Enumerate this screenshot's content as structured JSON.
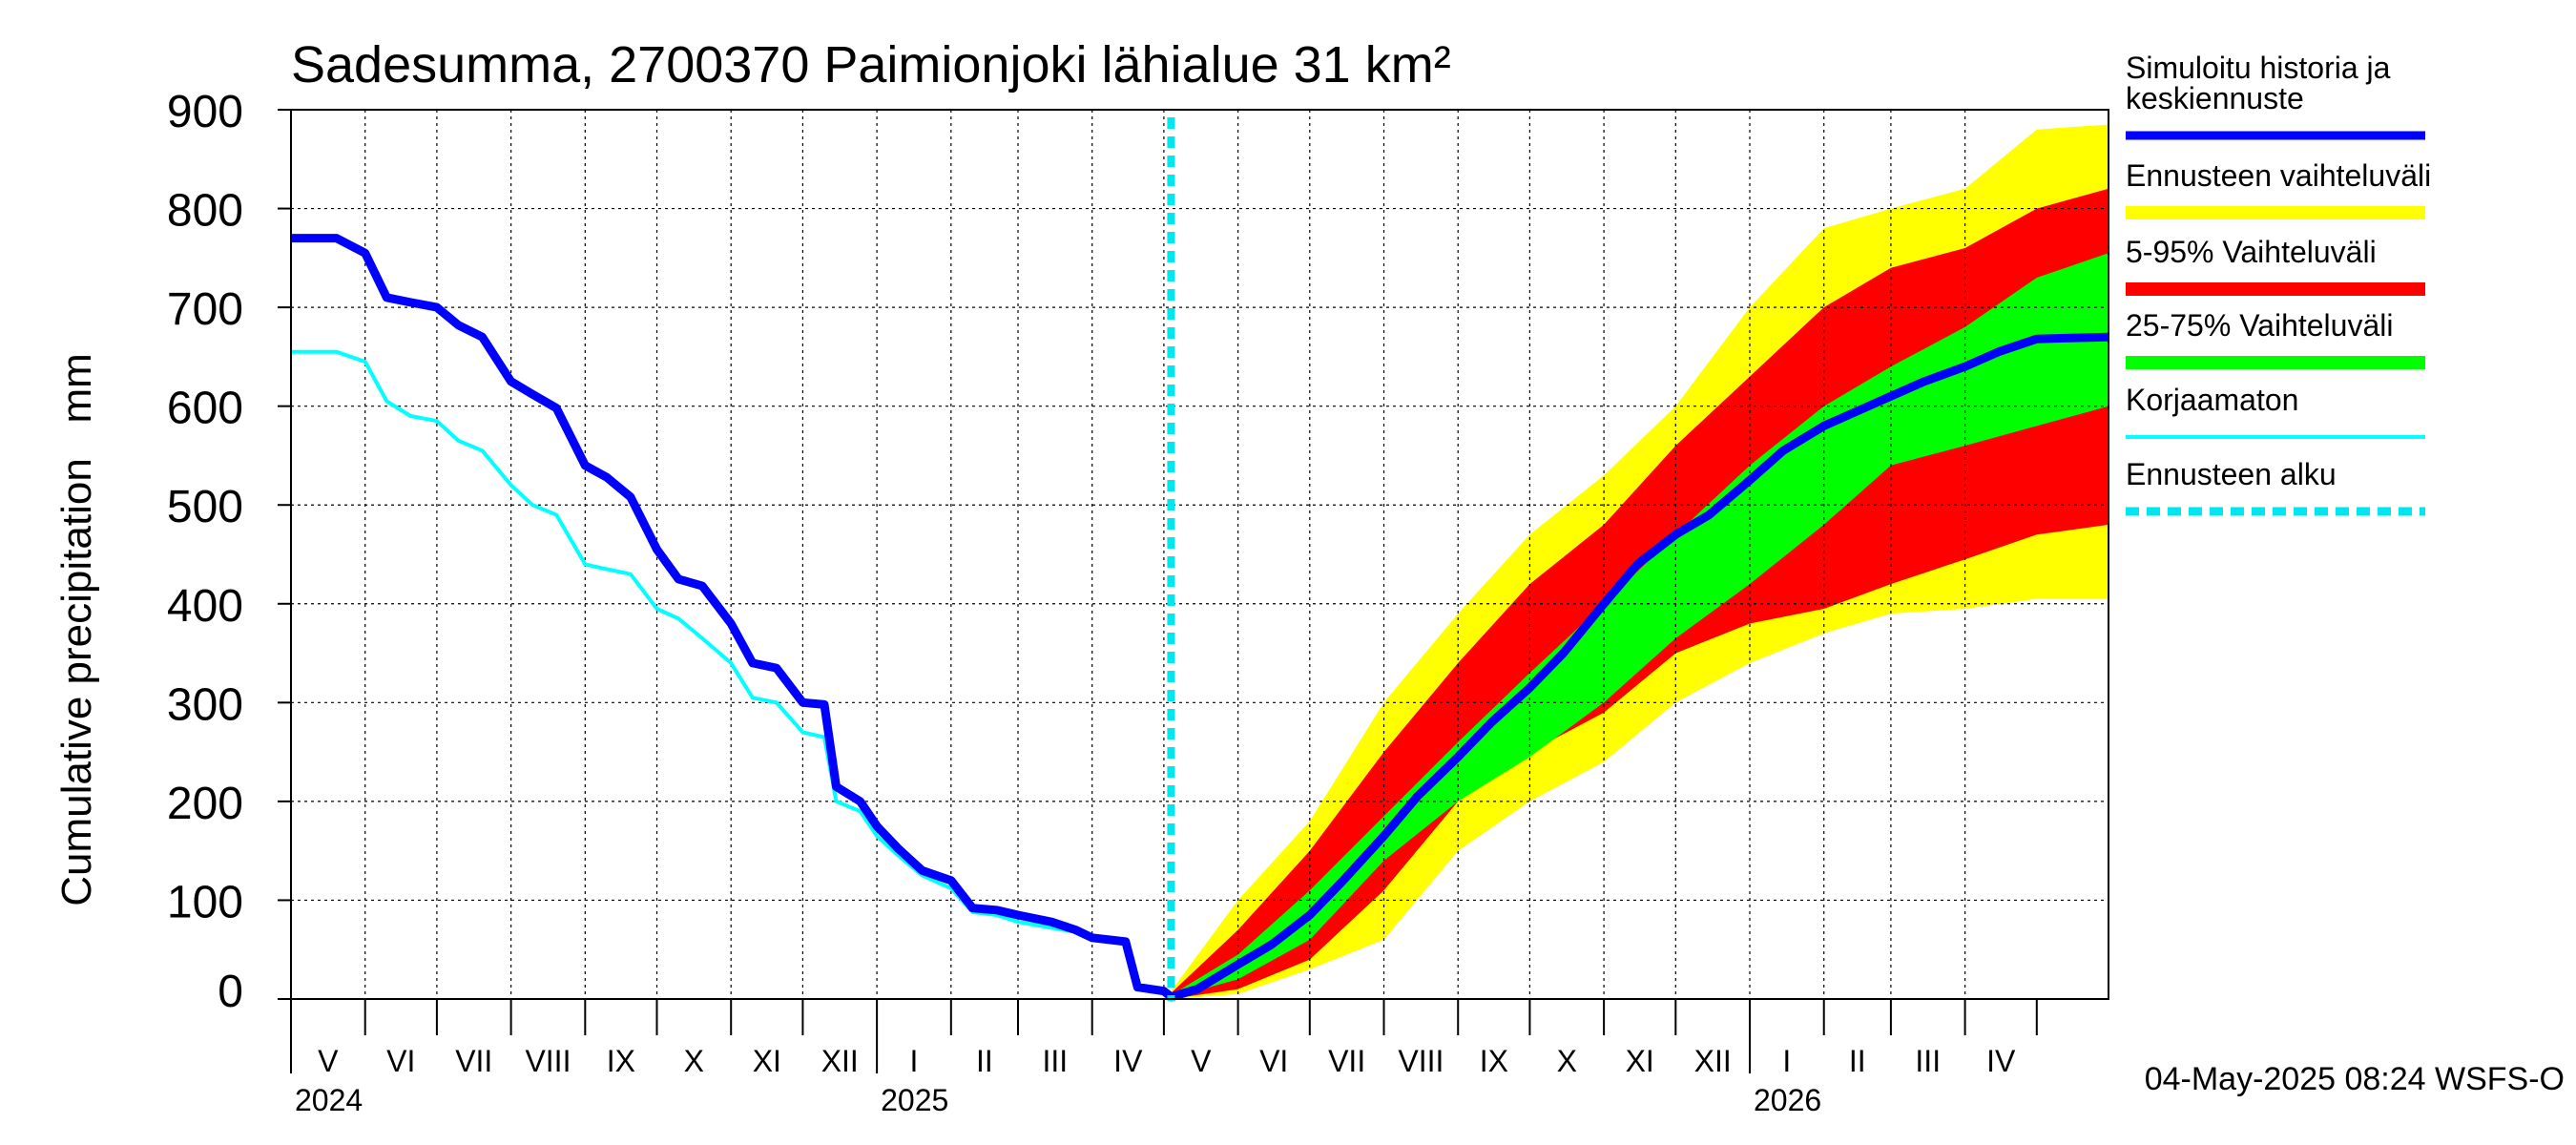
{
  "chart_data": {
    "type": "area",
    "title": "Sadesumma, 2700370 Paimionjoki lähialue 31 km²",
    "ylabel": "Cumulative precipitation   mm",
    "xlabel": "",
    "ylim": [
      0,
      900
    ],
    "yticks": [
      "0",
      "100",
      "200",
      "300",
      "400",
      "500",
      "600",
      "700",
      "800",
      "900"
    ],
    "x_start": "2024-05-01",
    "x_end": "2026-05-31",
    "forecast_start": "2025-05-04",
    "months": [
      "V",
      "VI",
      "VII",
      "VIII",
      "IX",
      "X",
      "XI",
      "XII",
      "I",
      "II",
      "III",
      "IV",
      "V",
      "VI",
      "VII",
      "VIII",
      "IX",
      "X",
      "XI",
      "XII",
      "I",
      "II",
      "III",
      "IV"
    ],
    "years": [
      {
        "label": "2024",
        "date": "2024-05-01"
      },
      {
        "label": "2025",
        "date": "2025-01-01"
      },
      {
        "label": "2026",
        "date": "2026-01-01"
      }
    ],
    "grid": true,
    "legend_position": "right",
    "legend": [
      {
        "label": "Simuloitu historia ja keskiennuste",
        "color": "#0000ff",
        "style": "thick"
      },
      {
        "label": "Ennusteen vaihteluväli",
        "color": "#ffff00",
        "style": "band"
      },
      {
        "label": "5-95% Vaihteluväli",
        "color": "#ff0000",
        "style": "band"
      },
      {
        "label": "25-75% Vaihteluväli",
        "color": "#00ff00",
        "style": "band"
      },
      {
        "label": "Korjaamaton",
        "color": "#00ffff",
        "style": "thin"
      },
      {
        "label": "Ennusteen alku",
        "color": "#00e5ee",
        "style": "dashed"
      }
    ],
    "series": [
      {
        "name": "Simuloitu historia ja keskiennuste",
        "points": [
          [
            "2024-05-01",
            770
          ],
          [
            "2024-05-20",
            770
          ],
          [
            "2024-06-01",
            755
          ],
          [
            "2024-06-10",
            710
          ],
          [
            "2024-06-20",
            705
          ],
          [
            "2024-07-01",
            700
          ],
          [
            "2024-07-10",
            682
          ],
          [
            "2024-07-20",
            670
          ],
          [
            "2024-08-01",
            625
          ],
          [
            "2024-08-10",
            612
          ],
          [
            "2024-08-20",
            598
          ],
          [
            "2024-09-01",
            540
          ],
          [
            "2024-09-10",
            528
          ],
          [
            "2024-09-20",
            508
          ],
          [
            "2024-10-01",
            455
          ],
          [
            "2024-10-10",
            425
          ],
          [
            "2024-10-20",
            418
          ],
          [
            "2024-11-01",
            380
          ],
          [
            "2024-11-10",
            340
          ],
          [
            "2024-11-20",
            335
          ],
          [
            "2024-12-01",
            300
          ],
          [
            "2024-12-10",
            298
          ],
          [
            "2024-12-15",
            215
          ],
          [
            "2024-12-25",
            200
          ],
          [
            "2025-01-01",
            175
          ],
          [
            "2025-01-10",
            152
          ],
          [
            "2025-01-20",
            130
          ],
          [
            "2025-02-01",
            120
          ],
          [
            "2025-02-10",
            92
          ],
          [
            "2025-02-20",
            90
          ],
          [
            "2025-03-01",
            85
          ],
          [
            "2025-03-15",
            78
          ],
          [
            "2025-03-25",
            70
          ],
          [
            "2025-04-01",
            62
          ],
          [
            "2025-04-15",
            58
          ],
          [
            "2025-04-20",
            12
          ],
          [
            "2025-05-01",
            8
          ],
          [
            "2025-05-04",
            2
          ],
          [
            "2025-05-15",
            10
          ],
          [
            "2025-06-01",
            35
          ],
          [
            "2025-06-15",
            55
          ],
          [
            "2025-07-01",
            85
          ],
          [
            "2025-07-15",
            120
          ],
          [
            "2025-08-01",
            165
          ],
          [
            "2025-08-15",
            205
          ],
          [
            "2025-09-01",
            245
          ],
          [
            "2025-09-15",
            280
          ],
          [
            "2025-10-01",
            315
          ],
          [
            "2025-10-15",
            350
          ],
          [
            "2025-11-01",
            400
          ],
          [
            "2025-11-15",
            440
          ],
          [
            "2025-12-01",
            470
          ],
          [
            "2025-12-15",
            490
          ],
          [
            "2026-01-01",
            525
          ],
          [
            "2026-01-15",
            555
          ],
          [
            "2026-02-01",
            580
          ],
          [
            "2026-02-15",
            595
          ],
          [
            "2026-03-01",
            610
          ],
          [
            "2026-03-15",
            625
          ],
          [
            "2026-04-01",
            640
          ],
          [
            "2026-04-15",
            655
          ],
          [
            "2026-05-01",
            668
          ],
          [
            "2026-05-31",
            670
          ]
        ]
      },
      {
        "name": "Korjaamaton",
        "points": [
          [
            "2024-05-01",
            655
          ],
          [
            "2024-05-20",
            655
          ],
          [
            "2024-06-01",
            645
          ],
          [
            "2024-06-10",
            605
          ],
          [
            "2024-06-20",
            590
          ],
          [
            "2024-07-01",
            585
          ],
          [
            "2024-07-10",
            565
          ],
          [
            "2024-07-20",
            555
          ],
          [
            "2024-08-01",
            520
          ],
          [
            "2024-08-10",
            500
          ],
          [
            "2024-08-20",
            490
          ],
          [
            "2024-09-01",
            440
          ],
          [
            "2024-09-10",
            435
          ],
          [
            "2024-09-20",
            430
          ],
          [
            "2024-10-01",
            395
          ],
          [
            "2024-10-10",
            385
          ],
          [
            "2024-10-20",
            365
          ],
          [
            "2024-11-01",
            340
          ],
          [
            "2024-11-10",
            305
          ],
          [
            "2024-11-20",
            300
          ],
          [
            "2024-12-01",
            270
          ],
          [
            "2024-12-10",
            265
          ],
          [
            "2024-12-15",
            200
          ],
          [
            "2024-12-25",
            190
          ],
          [
            "2025-01-01",
            165
          ],
          [
            "2025-01-10",
            145
          ],
          [
            "2025-01-20",
            125
          ],
          [
            "2025-02-01",
            112
          ],
          [
            "2025-02-10",
            88
          ],
          [
            "2025-02-20",
            85
          ],
          [
            "2025-03-01",
            78
          ],
          [
            "2025-03-15",
            72
          ],
          [
            "2025-03-25",
            68
          ],
          [
            "2025-04-01",
            62
          ],
          [
            "2025-04-15",
            60
          ],
          [
            "2025-04-20",
            15
          ],
          [
            "2025-05-01",
            8
          ],
          [
            "2025-05-04",
            4
          ]
        ]
      }
    ],
    "bands": [
      {
        "name": "Ennusteen vaihteluväli",
        "x": [
          "2025-05-04",
          "2025-06-01",
          "2025-07-01",
          "2025-08-01",
          "2025-09-01",
          "2025-10-01",
          "2025-11-01",
          "2025-12-01",
          "2026-01-01",
          "2026-02-01",
          "2026-03-01",
          "2026-04-01",
          "2026-05-01",
          "2026-05-31"
        ],
        "low": [
          0,
          5,
          30,
          60,
          150,
          200,
          240,
          300,
          340,
          370,
          390,
          395,
          405,
          405
        ],
        "high": [
          8,
          100,
          180,
          300,
          390,
          470,
          530,
          600,
          700,
          780,
          800,
          820,
          880,
          885
        ]
      },
      {
        "name": "5-95% Vaihteluväli",
        "x": [
          "2025-05-04",
          "2025-06-01",
          "2025-07-01",
          "2025-08-01",
          "2025-09-01",
          "2025-10-01",
          "2025-11-01",
          "2025-12-01",
          "2026-01-01",
          "2026-02-01",
          "2026-03-01",
          "2026-04-01",
          "2026-05-01",
          "2026-05-31"
        ],
        "low": [
          0,
          10,
          40,
          110,
          200,
          250,
          290,
          350,
          380,
          395,
          420,
          445,
          470,
          480
        ],
        "high": [
          6,
          70,
          150,
          250,
          340,
          420,
          480,
          560,
          630,
          700,
          740,
          760,
          800,
          820
        ]
      },
      {
        "name": "25-75% Vaihteluväli",
        "x": [
          "2025-05-04",
          "2025-06-01",
          "2025-07-01",
          "2025-08-01",
          "2025-09-01",
          "2025-10-01",
          "2025-11-01",
          "2025-12-01",
          "2026-01-01",
          "2026-02-01",
          "2026-03-01",
          "2026-04-01",
          "2026-05-01",
          "2026-05-31"
        ],
        "low": [
          1,
          20,
          60,
          140,
          200,
          245,
          300,
          365,
          420,
          480,
          540,
          560,
          580,
          600
        ],
        "high": [
          4,
          45,
          110,
          185,
          260,
          330,
          400,
          470,
          540,
          600,
          640,
          680,
          730,
          755
        ]
      }
    ]
  },
  "footer": {
    "timestamp": "04-May-2025 08:24 WSFS-O"
  }
}
